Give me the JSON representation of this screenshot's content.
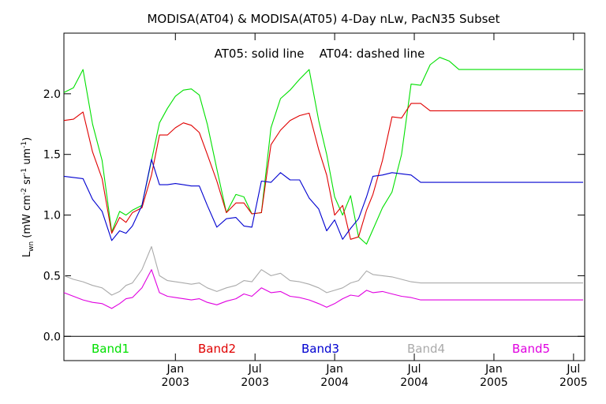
{
  "chart_data": {
    "type": "line",
    "title": "MODISA(AT04) & MODISA(AT05) 4-Day nLw, PacN35 Subset",
    "annotation": "AT05: solid line    AT04: dashed line",
    "ylabel": "L_wn (mW cm^-2 sr^-1 um^-1)",
    "ylabel_parts": {
      "main": "L",
      "sub": "wn",
      "units": "(mW cm",
      "exp1": "-2",
      "sr": " sr",
      "exp2": "-1",
      "um": " um",
      "exp3": "-1",
      "close": ")"
    },
    "xlabel": "",
    "ylim": [
      -0.2,
      2.5
    ],
    "xlim": [
      2002.3,
      2005.57
    ],
    "yticks": [
      "0.0",
      "0.5",
      "1.0",
      "1.5",
      "2.0"
    ],
    "xticks": [
      {
        "month": "Jan",
        "year": "2003",
        "x": 2003.0
      },
      {
        "month": "Jul",
        "year": "2003",
        "x": 2003.5
      },
      {
        "month": "Jan",
        "year": "2004",
        "x": 2004.0
      },
      {
        "month": "Jul",
        "year": "2004",
        "x": 2004.5
      },
      {
        "month": "Jan",
        "year": "2005",
        "x": 2005.0
      },
      {
        "month": "Jul",
        "year": "2005",
        "x": 2005.5
      }
    ],
    "zero_line": true,
    "x": [
      2002.3,
      2002.36,
      2002.42,
      2002.48,
      2002.54,
      2002.6,
      2002.65,
      2002.69,
      2002.73,
      2002.79,
      2002.85,
      2002.9,
      2002.95,
      2003.0,
      2003.05,
      2003.1,
      2003.15,
      2003.2,
      2003.26,
      2003.32,
      2003.38,
      2003.43,
      2003.48,
      2003.54,
      2003.6,
      2003.66,
      2003.72,
      2003.78,
      2003.84,
      2003.9,
      2003.95,
      2004.0,
      2004.05,
      2004.1,
      2004.15,
      2004.2,
      2004.24,
      2004.3,
      2004.36,
      2004.42,
      2004.48,
      2004.54,
      2004.6,
      2004.66,
      2004.72,
      2004.78,
      2004.84,
      2004.9,
      2004.95,
      2004.98,
      2005.02,
      2005.06,
      2005.11,
      2005.17,
      2005.23,
      2005.3,
      2005.37,
      2005.44,
      2005.5,
      2005.56
    ],
    "series": [
      {
        "name": "Band1",
        "color": "#00e000",
        "values": [
          2.01,
          2.05,
          2.2,
          1.75,
          1.45,
          0.86,
          1.03,
          1.0,
          1.04,
          1.08,
          1.45,
          1.76,
          1.88,
          1.98,
          2.03,
          2.04,
          1.99,
          1.75,
          1.38,
          1.02,
          1.17,
          1.15,
          1.01,
          1.02,
          1.72,
          1.96,
          2.03,
          2.12,
          2.2,
          1.78,
          1.5,
          1.15,
          1.0,
          1.16,
          0.82,
          0.76,
          0.88,
          1.06,
          1.19,
          1.5,
          2.08,
          2.07,
          2.24,
          2.3,
          2.27,
          2.2,
          2.2,
          2.2,
          2.2,
          2.2,
          2.2,
          2.2,
          2.2,
          2.2,
          2.2,
          2.2,
          2.2,
          2.2,
          2.2,
          2.2
        ]
      },
      {
        "name": "Band2",
        "color": "#e00000",
        "values": [
          1.78,
          1.79,
          1.85,
          1.52,
          1.3,
          0.85,
          0.98,
          0.94,
          1.02,
          1.06,
          1.33,
          1.66,
          1.66,
          1.72,
          1.76,
          1.74,
          1.68,
          1.5,
          1.28,
          1.02,
          1.1,
          1.1,
          1.01,
          1.02,
          1.58,
          1.7,
          1.78,
          1.82,
          1.84,
          1.54,
          1.33,
          1.0,
          1.08,
          0.8,
          0.82,
          1.04,
          1.17,
          1.45,
          1.81,
          1.8,
          1.92,
          1.92,
          1.86,
          1.86,
          1.86,
          1.86,
          1.86,
          1.86,
          1.86,
          1.86,
          1.86,
          1.86,
          1.86,
          1.86,
          1.86,
          1.86,
          1.86,
          1.86,
          1.86,
          1.86
        ]
      },
      {
        "name": "Band3",
        "color": "#0000d0",
        "values": [
          1.32,
          1.31,
          1.3,
          1.13,
          1.03,
          0.79,
          0.87,
          0.85,
          0.91,
          1.08,
          1.46,
          1.25,
          1.25,
          1.26,
          1.25,
          1.24,
          1.24,
          1.08,
          0.9,
          0.97,
          0.98,
          0.91,
          0.9,
          1.28,
          1.27,
          1.35,
          1.29,
          1.29,
          1.14,
          1.05,
          0.87,
          0.96,
          0.8,
          0.89,
          0.97,
          1.15,
          1.32,
          1.33,
          1.35,
          1.34,
          1.33,
          1.27,
          1.27,
          1.27,
          1.27,
          1.27,
          1.27,
          1.27,
          1.27,
          1.27,
          1.27,
          1.27,
          1.27,
          1.27,
          1.27,
          1.27,
          1.27,
          1.27,
          1.27,
          1.27
        ]
      },
      {
        "name": "Band4",
        "color": "#aaaaaa",
        "values": [
          0.5,
          0.47,
          0.45,
          0.42,
          0.4,
          0.34,
          0.37,
          0.42,
          0.44,
          0.55,
          0.74,
          0.5,
          0.46,
          0.45,
          0.44,
          0.43,
          0.44,
          0.4,
          0.37,
          0.4,
          0.42,
          0.46,
          0.45,
          0.55,
          0.5,
          0.52,
          0.46,
          0.45,
          0.43,
          0.4,
          0.36,
          0.38,
          0.4,
          0.44,
          0.46,
          0.54,
          0.51,
          0.5,
          0.49,
          0.47,
          0.45,
          0.44,
          0.44,
          0.44,
          0.44,
          0.44,
          0.44,
          0.44,
          0.44,
          0.44,
          0.44,
          0.44,
          0.44,
          0.44,
          0.44,
          0.44,
          0.44,
          0.44,
          0.44,
          0.44
        ]
      },
      {
        "name": "Band5",
        "color": "#e000e0",
        "values": [
          0.36,
          0.33,
          0.3,
          0.28,
          0.27,
          0.23,
          0.27,
          0.31,
          0.32,
          0.4,
          0.55,
          0.36,
          0.33,
          0.32,
          0.31,
          0.3,
          0.31,
          0.28,
          0.26,
          0.29,
          0.31,
          0.35,
          0.33,
          0.4,
          0.36,
          0.37,
          0.33,
          0.32,
          0.3,
          0.27,
          0.24,
          0.27,
          0.31,
          0.34,
          0.33,
          0.38,
          0.36,
          0.37,
          0.35,
          0.33,
          0.32,
          0.3,
          0.3,
          0.3,
          0.3,
          0.3,
          0.3,
          0.3,
          0.3,
          0.3,
          0.3,
          0.3,
          0.3,
          0.3,
          0.3,
          0.3,
          0.3,
          0.3,
          0.3,
          0.3
        ]
      }
    ]
  }
}
